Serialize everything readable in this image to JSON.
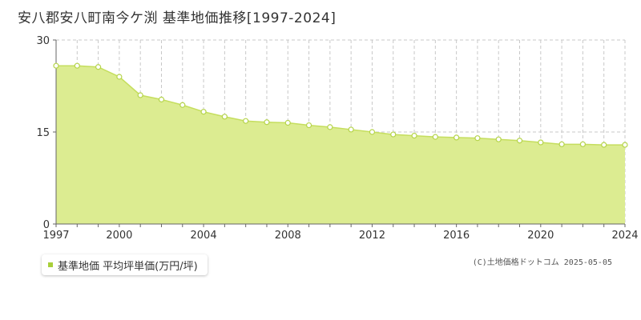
{
  "title": "安八郡安八町南今ケ渕 基準地価推移[1997-2024]",
  "legend_label": "基準地価 平均坪単価(万円/坪)",
  "credit": "(C)土地価格ドットコム 2025-05-05",
  "colors": {
    "fill": "#dcec91",
    "line": "#c5de5e",
    "marker_fill": "#ffffff",
    "marker_stroke": "#b5d44a",
    "legend_swatch": "#a8cf3a"
  },
  "chart_data": {
    "type": "area",
    "x": [
      1997,
      1998,
      1999,
      2000,
      2001,
      2002,
      2003,
      2004,
      2005,
      2006,
      2007,
      2008,
      2009,
      2010,
      2011,
      2012,
      2013,
      2014,
      2015,
      2016,
      2017,
      2018,
      2019,
      2020,
      2021,
      2022,
      2023,
      2024
    ],
    "series": [
      {
        "values": [
          25.8,
          25.8,
          25.6,
          24.0,
          21.0,
          20.3,
          19.4,
          18.3,
          17.5,
          16.8,
          16.6,
          16.5,
          16.1,
          15.8,
          15.4,
          15.0,
          14.6,
          14.4,
          14.2,
          14.1,
          14.0,
          13.8,
          13.6,
          13.3,
          13.0,
          13.0,
          12.9,
          12.9
        ]
      }
    ],
    "ylim": [
      0,
      30
    ],
    "yticks": [
      0,
      15,
      30
    ],
    "xticks": [
      1997,
      2000,
      2004,
      2008,
      2012,
      2016,
      2020,
      2024
    ],
    "grid": true,
    "legend_position": "bottom-left"
  }
}
